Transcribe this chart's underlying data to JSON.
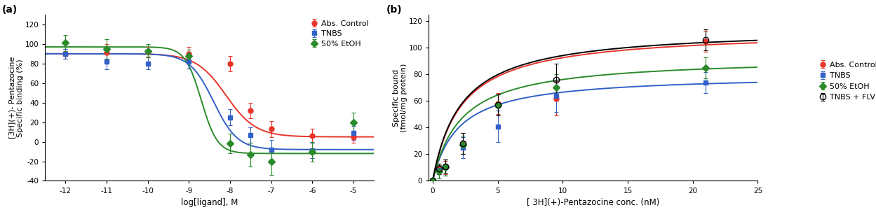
{
  "panel_a": {
    "label": "(a)",
    "xlabel": "log[ligand], M",
    "ylabel": "[3H](+)- Pentazocine\nSpecific binding (%)",
    "xlim": [
      -12.5,
      -4.5
    ],
    "ylim": [
      -40,
      130
    ],
    "xticks": [
      -12,
      -11,
      -10,
      -9,
      -8,
      -7,
      -6,
      -5
    ],
    "yticks": [
      -40,
      -20,
      0,
      20,
      40,
      60,
      80,
      100,
      120
    ],
    "series": [
      {
        "label": "Abs. Control",
        "color": "#e8342a",
        "marker": "o",
        "markersize": 5,
        "x": [
          -12,
          -11,
          -10,
          -9,
          -8,
          -7.5,
          -7,
          -6,
          -5
        ],
        "y": [
          90,
          91,
          92,
          90,
          80,
          32,
          13,
          6,
          5
        ],
        "yerr": [
          5,
          9,
          5,
          7,
          8,
          8,
          8,
          7,
          6
        ],
        "curve_top": 90,
        "curve_bottom": 5,
        "curve_ec50": -8.1,
        "curve_hill": 1.2
      },
      {
        "label": "TNBS",
        "color": "#3060c8",
        "marker": "s",
        "markersize": 5,
        "x": [
          -12,
          -11,
          -10,
          -9,
          -8,
          -7.5,
          -7,
          -6,
          -5
        ],
        "y": [
          90,
          82,
          80,
          82,
          25,
          7,
          -8,
          -9,
          9
        ],
        "yerr": [
          5,
          8,
          6,
          7,
          8,
          8,
          10,
          8,
          7
        ],
        "curve_top": 90,
        "curve_bottom": -8,
        "curve_ec50": -8.4,
        "curve_hill": 1.5
      },
      {
        "label": "50% EtOH",
        "color": "#2a8a2a",
        "marker": "D",
        "markersize": 5,
        "x": [
          -12,
          -11,
          -10,
          -9,
          -8,
          -7.5,
          -7,
          -6,
          -5
        ],
        "y": [
          101,
          95,
          93,
          88,
          -2,
          -13,
          -20,
          -10,
          20
        ],
        "yerr": [
          8,
          10,
          7,
          6,
          10,
          12,
          14,
          10,
          10
        ],
        "curve_top": 97,
        "curve_bottom": -12,
        "curve_ec50": -8.7,
        "curve_hill": 2.2
      }
    ]
  },
  "panel_b": {
    "label": "(b)",
    "xlabel": "[ 3H](+)-Pentazocine conc. (nM)",
    "ylabel": "Specific bound\n(fmol/mg protein)",
    "xlim": [
      -0.3,
      25
    ],
    "ylim": [
      0,
      125
    ],
    "xticks": [
      0,
      5,
      10,
      15,
      20,
      25
    ],
    "yticks": [
      0,
      20,
      40,
      60,
      80,
      100,
      120
    ],
    "series": [
      {
        "label": "Abs. Control",
        "color": "#e8342a",
        "marker": "o",
        "markerfacecolor": "#e8342a",
        "markersize": 5,
        "x": [
          0,
          0.5,
          1,
          2.3,
          5,
          9.5,
          21
        ],
        "y": [
          0,
          9,
          10,
          28,
          58,
          62,
          105
        ],
        "yerr": [
          0,
          3,
          5,
          8,
          8,
          13,
          8
        ],
        "bmax": 113,
        "kd": 2.2
      },
      {
        "label": "TNBS",
        "color": "#3060c8",
        "marker": "s",
        "markerfacecolor": "#3060c8",
        "markersize": 5,
        "x": [
          0,
          0.5,
          1,
          2.3,
          5,
          9.5,
          21
        ],
        "y": [
          0,
          8,
          10,
          25,
          41,
          64,
          74
        ],
        "yerr": [
          0,
          3,
          6,
          8,
          12,
          12,
          8
        ],
        "bmax": 80,
        "kd": 2.0
      },
      {
        "label": "50% EtOH",
        "color": "#2a8a2a",
        "marker": "D",
        "markerfacecolor": "#2a8a2a",
        "markersize": 5,
        "x": [
          0,
          0.5,
          1,
          2.3,
          5,
          9.5,
          21
        ],
        "y": [
          0,
          7,
          10,
          27,
          57,
          70,
          85
        ],
        "yerr": [
          0,
          5,
          6,
          7,
          8,
          10,
          8
        ],
        "bmax": 93,
        "kd": 2.2
      },
      {
        "label": "TNBS + FLV",
        "color": "#000000",
        "marker": "o",
        "markerfacecolor": "none",
        "markersize": 6,
        "x": [
          0,
          0.5,
          1,
          2.3,
          5,
          9.5,
          21
        ],
        "y": [
          0,
          9,
          11,
          28,
          57,
          76,
          106
        ],
        "yerr": [
          0,
          4,
          5,
          8,
          8,
          12,
          8
        ],
        "bmax": 115,
        "kd": 2.2
      }
    ]
  }
}
